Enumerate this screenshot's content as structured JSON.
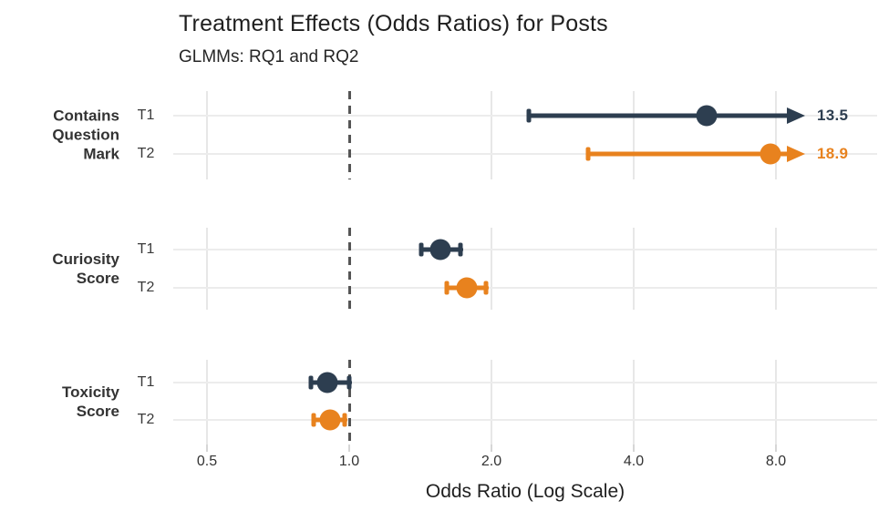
{
  "title": "Treatment Effects (Odds Ratios) for Posts",
  "subtitle": "GLMMs: RQ1 and RQ2",
  "colors": {
    "t1": "#2d3e50",
    "t2": "#e8821e",
    "grid": "#e9e9e9",
    "reference": "#555555",
    "text": "#1f1f1f",
    "muted_text": "#333333"
  },
  "chart_data": {
    "type": "scatter",
    "subtype": "forest-plot-dot-whisker",
    "x_scale": "log",
    "xlabel": "Odds Ratio (Log Scale)",
    "x_ticks": [
      0.5,
      1.0,
      2.0,
      4.0,
      8.0
    ],
    "x_tick_labels": [
      "0.5",
      "1.0",
      "2.0",
      "4.0",
      "8.0"
    ],
    "x_range_approx": [
      0.38,
      9.6
    ],
    "reference_line": 1.0,
    "grid": "on",
    "legend": "none",
    "facets": [
      {
        "label_lines": [
          "Contains",
          "Question",
          "Mark"
        ],
        "rows": [
          {
            "name": "T1",
            "series": "t1",
            "or": 5.7,
            "ci_low": 2.4,
            "ci_high": 13.5,
            "clipped_high": true,
            "annotation": "13.5"
          },
          {
            "name": "T2",
            "series": "t2",
            "or": 7.8,
            "ci_low": 3.2,
            "ci_high": 18.9,
            "clipped_high": true,
            "annotation": "18.9"
          }
        ]
      },
      {
        "label_lines": [
          "Curiosity",
          "Score"
        ],
        "rows": [
          {
            "name": "T1",
            "series": "t1",
            "or": 1.56,
            "ci_low": 1.42,
            "ci_high": 1.72,
            "clipped_high": false,
            "annotation": ""
          },
          {
            "name": "T2",
            "series": "t2",
            "or": 1.77,
            "ci_low": 1.61,
            "ci_high": 1.95,
            "clipped_high": false,
            "annotation": ""
          }
        ]
      },
      {
        "label_lines": [
          "Toxicity",
          "Score"
        ],
        "rows": [
          {
            "name": "T1",
            "series": "t1",
            "or": 0.9,
            "ci_low": 0.83,
            "ci_high": 1.0,
            "clipped_high": false,
            "annotation": ""
          },
          {
            "name": "T2",
            "series": "t2",
            "or": 0.91,
            "ci_low": 0.84,
            "ci_high": 0.98,
            "clipped_high": false,
            "annotation": ""
          }
        ]
      }
    ]
  }
}
